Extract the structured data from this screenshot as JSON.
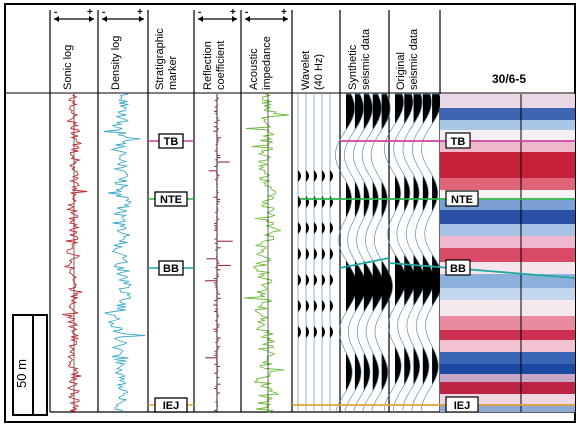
{
  "tracks": {
    "sonic": {
      "label": "Sonic log",
      "color": "#c0282e"
    },
    "density": {
      "label": "Density log",
      "color": "#3aa9c6"
    },
    "strat": {
      "label1": "Stratigraphic",
      "label2": "marker"
    },
    "refl": {
      "label1": "Reflection",
      "label2": "coefficient",
      "color": "#8b1a2a"
    },
    "ai": {
      "label1": "Acoustic",
      "label2": "impedance",
      "color": "#6cbc3a"
    },
    "wavelet": {
      "label1": "Wavelet",
      "label2": "(40 Hz)"
    },
    "synthetic": {
      "label1": "Synthetic",
      "label2": "seismic data"
    },
    "original": {
      "label1": "Original",
      "label2": "seismic data"
    }
  },
  "scale_axes": {
    "minus": "-",
    "plus": "+"
  },
  "markers": [
    {
      "name": "TB",
      "color": "#d13fa0"
    },
    {
      "name": "NTE",
      "color": "#2fb34a"
    },
    {
      "name": "BB",
      "color": "#21a7a0"
    },
    {
      "name": "IEJ",
      "color": "#e4a23a"
    }
  ],
  "well_name": "30/6-5",
  "scale_bar": "50 m"
}
